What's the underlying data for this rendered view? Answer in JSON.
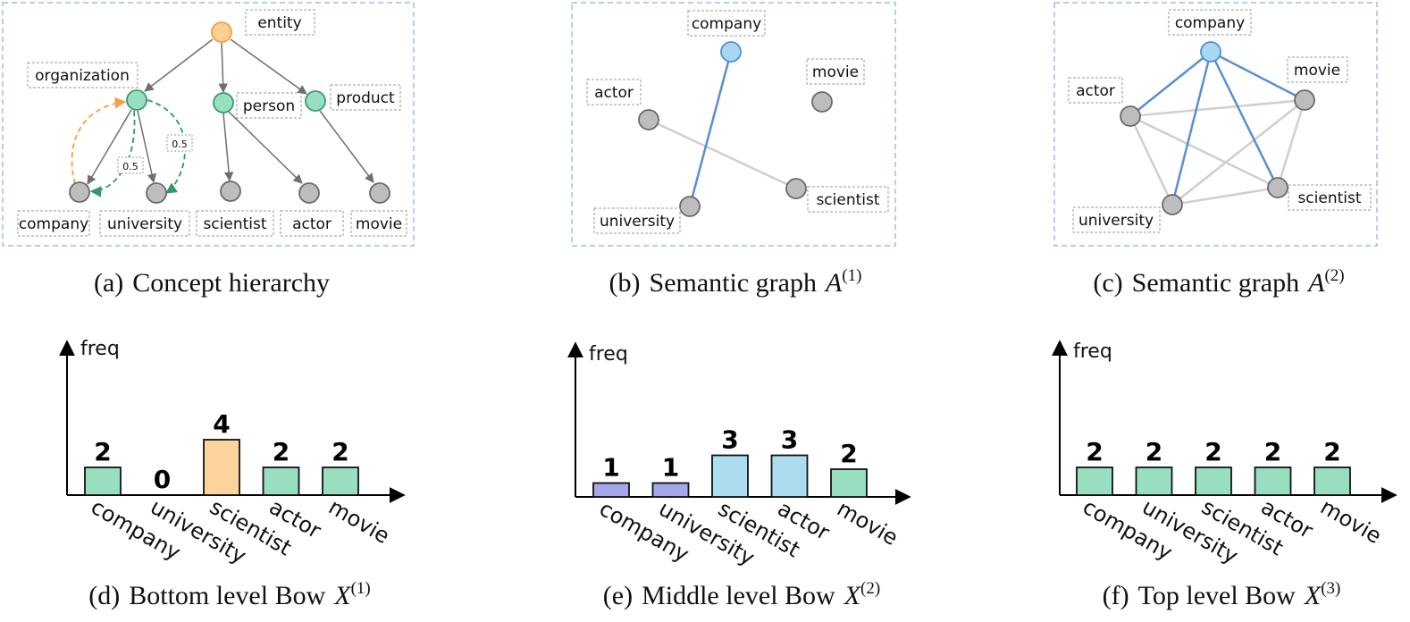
{
  "colors": {
    "root": "#fbd090",
    "root_stroke": "#f0a040",
    "green": "#97dfc0",
    "green_stroke": "#3a9a6a",
    "gray": "#bdbdbd",
    "gray_stroke": "#6a6a6a",
    "blue_node": "#a8d8f0",
    "blue_stroke": "#4f8fd0",
    "blue_edge": "#5b8fd0",
    "gray_edge": "#cfcfcf",
    "orange_edge": "#f2a040",
    "green_edge": "#2f9a6a",
    "purple_bar": "#a6a6e8",
    "blue_bar": "#abdcf0",
    "green_bar": "#97dfc0",
    "orange_bar": "#fdd39c",
    "frame": "#9fbfe8"
  },
  "panel_a": {
    "caption_tag": "(a)",
    "caption": "Concept hierarchy",
    "labels": {
      "entity": "entity",
      "organization": "organization",
      "person": "person",
      "product": "product",
      "company": "company",
      "university": "university",
      "scientist": "scientist",
      "actor": "actor",
      "movie": "movie"
    },
    "weight1": "0.5",
    "weight2": "0.5"
  },
  "panel_b": {
    "caption_tag": "(b)",
    "caption": "Semantic graph",
    "caption_var": "A",
    "caption_sup": "(1)",
    "labels": {
      "company": "company",
      "movie": "movie",
      "actor": "actor",
      "scientist": "scientist",
      "university": "university"
    }
  },
  "panel_c": {
    "caption_tag": "(c)",
    "caption": "Semantic graph",
    "caption_var": "A",
    "caption_sup": "(2)",
    "labels": {
      "company": "company",
      "movie": "movie",
      "actor": "actor",
      "scientist": "scientist",
      "university": "university"
    }
  },
  "chart_data": [
    {
      "type": "bar",
      "caption_tag": "(d)",
      "title": "Bottom level Bow",
      "title_var": "X",
      "title_sup": "(1)",
      "ylabel": "freq",
      "categories": [
        "company",
        "university",
        "scientist",
        "actor",
        "movie"
      ],
      "values": [
        2,
        0,
        4,
        2,
        2
      ],
      "colors": [
        "#97dfc0",
        "#97dfc0",
        "#fdd39c",
        "#97dfc0",
        "#97dfc0"
      ]
    },
    {
      "type": "bar",
      "caption_tag": "(e)",
      "title": "Middle level Bow",
      "title_var": "X",
      "title_sup": "(2)",
      "ylabel": "freq",
      "categories": [
        "company",
        "university",
        "scientist",
        "actor",
        "movie"
      ],
      "values": [
        1,
        1,
        3,
        3,
        2
      ],
      "colors": [
        "#a6a6e8",
        "#a6a6e8",
        "#abdcf0",
        "#abdcf0",
        "#97dfc0"
      ]
    },
    {
      "type": "bar",
      "caption_tag": "(f)",
      "title": "Top level Bow",
      "title_var": "X",
      "title_sup": "(3)",
      "ylabel": "freq",
      "categories": [
        "company",
        "university",
        "scientist",
        "actor",
        "movie"
      ],
      "values": [
        2,
        2,
        2,
        2,
        2
      ],
      "colors": [
        "#97dfc0",
        "#97dfc0",
        "#97dfc0",
        "#97dfc0",
        "#97dfc0"
      ]
    }
  ]
}
